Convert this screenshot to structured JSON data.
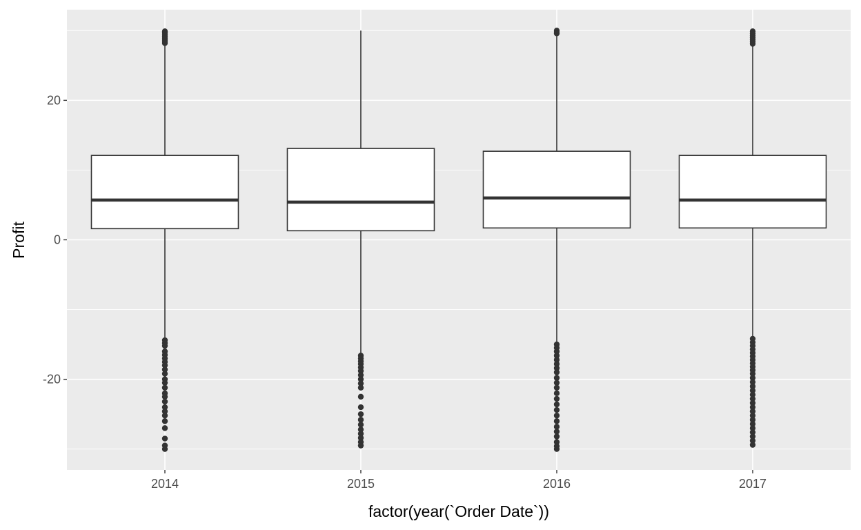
{
  "chart_data": {
    "type": "boxplot",
    "title": "",
    "xlabel": "factor(year(`Order Date`))",
    "ylabel": "Profit",
    "ylim": [
      -33,
      33
    ],
    "y_ticks": [
      -20,
      0,
      20
    ],
    "grid": true,
    "categories": [
      "2014",
      "2015",
      "2016",
      "2017"
    ],
    "boxes": [
      {
        "category": "2014",
        "whisker_low": -14,
        "q1": 1.6,
        "median": 5.7,
        "q3": 12.1,
        "whisker_high": 28,
        "outliers": [
          28.2,
          28.5,
          28.8,
          29.1,
          29.4,
          29.7,
          29.9,
          -14.4,
          -14.8,
          -15.2,
          -16,
          -16.5,
          -17,
          -17.5,
          -18,
          -18.6,
          -19.2,
          -20,
          -20.5,
          -21.2,
          -22,
          -22.5,
          -23.2,
          -24,
          -24.6,
          -25.2,
          -26,
          -27,
          -28.5,
          -29.5,
          -30
        ]
      },
      {
        "category": "2015",
        "whisker_low": -16.5,
        "q1": 1.3,
        "median": 5.4,
        "q3": 13.1,
        "whisker_high": 30,
        "outliers": [
          -16.6,
          -17,
          -17.4,
          -17.8,
          -18.3,
          -18.8,
          -19.4,
          -20,
          -20.6,
          -21.2,
          -22.5,
          -24,
          -25,
          -25.8,
          -26.5,
          -27.2,
          -27.8,
          -28.4,
          -29,
          -29.5
        ]
      },
      {
        "category": "2016",
        "whisker_low": -15,
        "q1": 1.7,
        "median": 6,
        "q3": 12.7,
        "whisker_high": 29.5,
        "outliers": [
          29.6,
          29.8,
          30,
          -15,
          -15.5,
          -16,
          -16.6,
          -17.2,
          -17.8,
          -18.4,
          -19,
          -19.8,
          -20.5,
          -21.2,
          -22,
          -22.8,
          -23.6,
          -24.4,
          -25.2,
          -26,
          -26.8,
          -27.5,
          -28.2,
          -29,
          -29.6,
          -30
        ]
      },
      {
        "category": "2017",
        "whisker_low": -14,
        "q1": 1.7,
        "median": 5.7,
        "q3": 12.1,
        "whisker_high": 28,
        "outliers": [
          28.1,
          28.4,
          28.7,
          29,
          29.3,
          29.6,
          29.9,
          -14.2,
          -14.7,
          -15.2,
          -15.7,
          -16.2,
          -16.7,
          -17.2,
          -17.7,
          -18.2,
          -18.7,
          -19.2,
          -19.8,
          -20.4,
          -21,
          -21.6,
          -22.2,
          -22.8,
          -23.4,
          -24,
          -24.6,
          -25.2,
          -25.8,
          -26.4,
          -27,
          -27.6,
          -28.2,
          -28.8,
          -29.4
        ]
      }
    ]
  }
}
